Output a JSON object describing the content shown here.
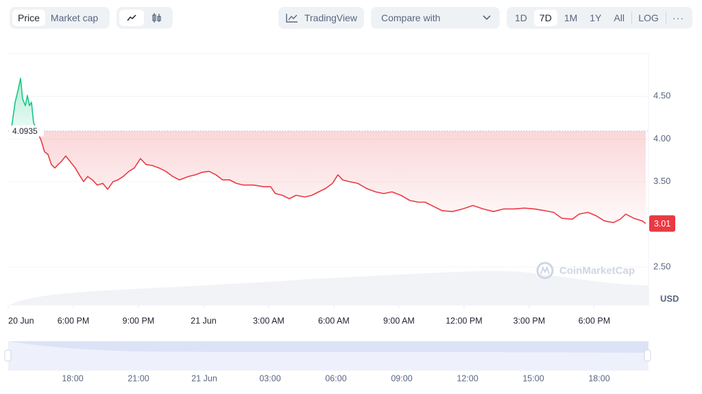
{
  "toolbar": {
    "metric_tabs": [
      "Price",
      "Market cap"
    ],
    "tradingview": "TradingView",
    "compare": "Compare with",
    "ranges": [
      "1D",
      "7D",
      "1M",
      "1Y",
      "All"
    ],
    "log": "LOG"
  },
  "chart_data": {
    "type": "line",
    "x": [
      15.16,
      15.32,
      15.47,
      15.57,
      15.66,
      15.79,
      15.88,
      15.98,
      16.07,
      16.17,
      16.52,
      16.67,
      16.83,
      16.99,
      17.15,
      17.3,
      17.46,
      17.65,
      17.84,
      18.09,
      18.32,
      18.47,
      18.66,
      18.88,
      19.1,
      19.36,
      19.58,
      19.83,
      20.05,
      20.3,
      20.56,
      20.81,
      21.09,
      21.35,
      21.63,
      21.95,
      22.26,
      22.58,
      22.89,
      23.3,
      23.62,
      23.94,
      24.25,
      24.57,
      24.88,
      25.2,
      25.51,
      25.83,
      26.3,
      26.78,
      27.09,
      27.31,
      27.63,
      27.95,
      28.26,
      28.67,
      28.99,
      29.3,
      29.62,
      29.94,
      30.19,
      30.41,
      30.72,
      31.1,
      31.51,
      31.92,
      32.3,
      32.68,
      33.09,
      33.5,
      33.88,
      34.2,
      34.51,
      34.99,
      35.46,
      35.94,
      36.41,
      36.88,
      37.36,
      37.83,
      38.3,
      38.78,
      39.25,
      39.72,
      40.13,
      40.51,
      40.99,
      41.3,
      41.71,
      42.09,
      42.47,
      42.88,
      43.2,
      43.45,
      43.83,
      44.21,
      44.37
    ],
    "values": [
      4.15,
      4.43,
      4.59,
      4.71,
      4.47,
      4.39,
      4.51,
      4.39,
      4.43,
      4.19,
      3.98,
      3.85,
      3.82,
      3.7,
      3.66,
      3.7,
      3.74,
      3.8,
      3.74,
      3.66,
      3.56,
      3.5,
      3.56,
      3.52,
      3.46,
      3.48,
      3.41,
      3.5,
      3.52,
      3.56,
      3.62,
      3.66,
      3.77,
      3.7,
      3.69,
      3.66,
      3.62,
      3.56,
      3.52,
      3.56,
      3.58,
      3.61,
      3.62,
      3.58,
      3.52,
      3.52,
      3.48,
      3.46,
      3.46,
      3.44,
      3.44,
      3.36,
      3.34,
      3.3,
      3.34,
      3.32,
      3.34,
      3.38,
      3.42,
      3.48,
      3.58,
      3.52,
      3.5,
      3.48,
      3.42,
      3.38,
      3.36,
      3.38,
      3.34,
      3.28,
      3.26,
      3.26,
      3.22,
      3.16,
      3.15,
      3.18,
      3.22,
      3.18,
      3.15,
      3.18,
      3.18,
      3.19,
      3.18,
      3.16,
      3.14,
      3.07,
      3.06,
      3.12,
      3.14,
      3.1,
      3.04,
      3.02,
      3.06,
      3.12,
      3.07,
      3.04,
      3.01
    ],
    "reference_value": 4.0935,
    "up_color": "#16c784",
    "down_color": "#ea3943",
    "xlim": [
      15,
      44.5
    ],
    "xticks": [
      {
        "value": 15,
        "label": "20 Jun"
      },
      {
        "value": 18,
        "label": "6:00 PM"
      },
      {
        "value": 21,
        "label": "9:00 PM"
      },
      {
        "value": 24,
        "label": "21 Jun"
      },
      {
        "value": 27,
        "label": "3:00 AM"
      },
      {
        "value": 30,
        "label": "6:00 AM"
      },
      {
        "value": 33,
        "label": "9:00 AM"
      },
      {
        "value": 36,
        "label": "12:00 PM"
      },
      {
        "value": 39,
        "label": "3:00 PM"
      },
      {
        "value": 42,
        "label": "6:00 PM"
      }
    ],
    "ylim": [
      2.05,
      5.0
    ],
    "yticks": [
      {
        "value": 2.5,
        "label": "2.50"
      },
      {
        "value": 3.5,
        "label": "3.50"
      },
      {
        "value": 4,
        "label": "4.00"
      },
      {
        "value": 4.5,
        "label": "4.50"
      }
    ],
    "y_label": "USD",
    "watermark": "CoinMarketCap",
    "grid": true
  },
  "navigator": {
    "labels": [
      "18:00",
      "21:00",
      "21 Jun",
      "03:00",
      "06:00",
      "09:00",
      "12:00",
      "15:00",
      "18:00"
    ]
  }
}
